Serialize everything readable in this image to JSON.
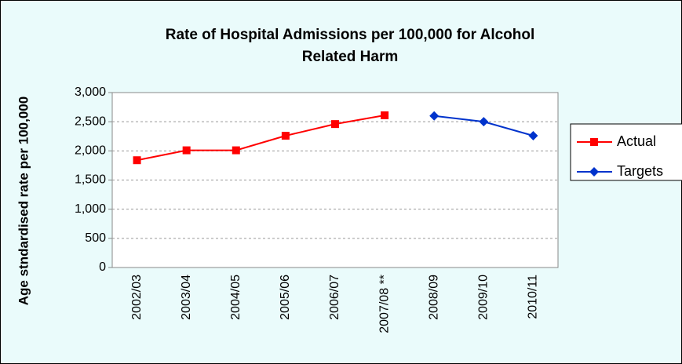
{
  "chart_data": {
    "type": "line",
    "title": [
      "Rate of Hospital Admissions per 100,000 for Alcohol",
      "Related Harm"
    ],
    "y_label": "Age stndardised rate per 100,000",
    "categories": [
      "2002/03",
      "2003/04",
      "2004/05",
      "2005/06",
      "2006/07",
      "2007/08 **",
      "2008/09",
      "2009/10",
      "2010/11"
    ],
    "series": [
      {
        "name": "Actual",
        "color": "#ff0000",
        "marker": "square",
        "values": [
          1840,
          2010,
          2010,
          2260,
          2460,
          2610,
          null,
          null,
          null
        ]
      },
      {
        "name": "Targets",
        "color": "#0033cc",
        "marker": "diamond",
        "values": [
          null,
          null,
          null,
          null,
          null,
          null,
          2600,
          2500,
          2260
        ]
      }
    ],
    "ylim": [
      0,
      3000
    ],
    "yticks": [
      0,
      {
        "value": 500,
        "label": "500"
      },
      {
        "value": 1000,
        "label": "1,000"
      },
      {
        "value": 1500,
        "label": "1,500"
      },
      {
        "value": 2000,
        "label": "2,000"
      },
      {
        "value": 2500,
        "label": "2,500"
      },
      {
        "value": 3000,
        "label": "3,000"
      }
    ],
    "grid": true,
    "legend": "right"
  }
}
